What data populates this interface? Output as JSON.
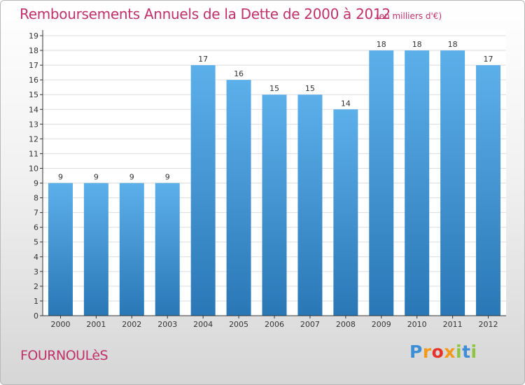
{
  "header": {
    "title": "Remboursements Annuels de la Dette de 2000 à 2012",
    "subtitle": "(en milliers d'€)"
  },
  "footer": {
    "commune": "FOURNOULèS",
    "brand": {
      "letters": [
        "P",
        "r",
        "o",
        "x",
        "i",
        "t",
        "i"
      ],
      "colors": [
        "#3e8ed6",
        "#f39a1c",
        "#e6332a",
        "#f39a1c",
        "#8fc43f",
        "#3e8ed6",
        "#8fc43f"
      ]
    }
  },
  "chart_data": {
    "type": "bar",
    "categories": [
      "2000",
      "2001",
      "2002",
      "2003",
      "2004",
      "2005",
      "2006",
      "2007",
      "2008",
      "2009",
      "2010",
      "2011",
      "2012"
    ],
    "values": [
      9,
      9,
      9,
      9,
      17,
      16,
      15,
      15,
      14,
      18,
      18,
      18,
      17
    ],
    "data_labels": [
      "9",
      "9",
      "9",
      "9",
      "17",
      "16",
      "15",
      "15",
      "14",
      "18",
      "18",
      "18",
      "17"
    ],
    "y_ticks": [
      "0",
      "1",
      "2",
      "3",
      "4",
      "5",
      "6",
      "7",
      "8",
      "9",
      "10",
      "11",
      "12",
      "13",
      "14",
      "15",
      "16",
      "17",
      "18",
      "19"
    ],
    "ylim": [
      0,
      19
    ],
    "grid": true,
    "colors": {
      "bar_light": "#5cb0ea",
      "bar_dark": "#2a77b6",
      "grid": "#dddddd",
      "axis": "#333333"
    }
  }
}
